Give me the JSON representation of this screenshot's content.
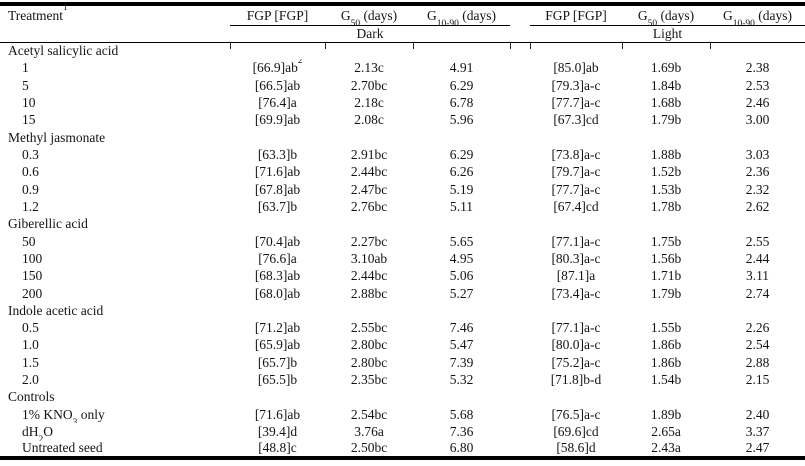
{
  "table": {
    "headers": {
      "treatment": "Treatment",
      "treatment_sup": "1",
      "fgp": "FGP [FGP]",
      "g50_main": "G",
      "g50_sub": "50",
      "g1090_main": "G",
      "g1090_sub": "10-90",
      "days_unit": " (days)",
      "dark": "Dark",
      "light": "Light"
    },
    "sections": [
      {
        "group": "Acetyl salicylic acid",
        "rows": [
          {
            "treatment": "1",
            "dark_fgp": "[66.9]ab",
            "dark_fgp_sup": "2",
            "dark_g50": "2.13c",
            "dark_g1090": "4.91",
            "light_fgp": "[85.0]ab",
            "light_g50": "1.69b",
            "light_g1090": "2.38"
          },
          {
            "treatment": "5",
            "dark_fgp": "[66.5]ab",
            "dark_g50": "2.70bc",
            "dark_g1090": "6.29",
            "light_fgp": "[79.3]a-c",
            "light_g50": "1.84b",
            "light_g1090": "2.53"
          },
          {
            "treatment": "10",
            "dark_fgp": "[76.4]a",
            "dark_g50": "2.18c",
            "dark_g1090": "6.78",
            "light_fgp": "[77.7]a-c",
            "light_g50": "1.68b",
            "light_g1090": "2.46"
          },
          {
            "treatment": "15",
            "dark_fgp": "[69.9]ab",
            "dark_g50": "2.08c",
            "dark_g1090": "5.96",
            "light_fgp": "[67.3]cd",
            "light_g50": "1.79b",
            "light_g1090": "3.00"
          }
        ]
      },
      {
        "group": "Methyl jasmonate",
        "rows": [
          {
            "treatment": "0.3",
            "dark_fgp": "[63.3]b",
            "dark_g50": "2.91bc",
            "dark_g1090": "6.29",
            "light_fgp": "[73.8]a-c",
            "light_g50": "1.88b",
            "light_g1090": "3.03"
          },
          {
            "treatment": "0.6",
            "dark_fgp": "[71.6]ab",
            "dark_g50": "2.44bc",
            "dark_g1090": "6.26",
            "light_fgp": "[79.7]a-c",
            "light_g50": "1.52b",
            "light_g1090": "2.36"
          },
          {
            "treatment": "0.9",
            "dark_fgp": "[67.8]ab",
            "dark_g50": "2.47bc",
            "dark_g1090": "5.19",
            "light_fgp": "[77.7]a-c",
            "light_g50": "1.53b",
            "light_g1090": "2.32"
          },
          {
            "treatment": "1.2",
            "dark_fgp": "[63.7]b",
            "dark_g50": "2.76bc",
            "dark_g1090": "5.11",
            "light_fgp": "[67.4]cd",
            "light_g50": "1.78b",
            "light_g1090": "2.62"
          }
        ]
      },
      {
        "group": "Giberellic acid",
        "rows": [
          {
            "treatment": "50",
            "dark_fgp": "[70.4]ab",
            "dark_g50": "2.27bc",
            "dark_g1090": "5.65",
            "light_fgp": "[77.1]a-c",
            "light_g50": "1.75b",
            "light_g1090": "2.55"
          },
          {
            "treatment": "100",
            "dark_fgp": "[76.6]a",
            "dark_g50": "3.10ab",
            "dark_g1090": "4.95",
            "light_fgp": "[80.3]a-c",
            "light_g50": "1.56b",
            "light_g1090": "2.44"
          },
          {
            "treatment": "150",
            "dark_fgp": "[68.3]ab",
            "dark_g50": "2.44bc",
            "dark_g1090": "5.06",
            "light_fgp": "[87.1]a",
            "light_g50": "1.71b",
            "light_g1090": "3.11"
          },
          {
            "treatment": "200",
            "dark_fgp": "[68.0]ab",
            "dark_g50": "2.88bc",
            "dark_g1090": "5.27",
            "light_fgp": "[73.4]a-c",
            "light_g50": "1.79b",
            "light_g1090": "2.74"
          }
        ]
      },
      {
        "group": "Indole acetic acid",
        "rows": [
          {
            "treatment": "0.5",
            "dark_fgp": "[71.2]ab",
            "dark_g50": "2.55bc",
            "dark_g1090": "7.46",
            "light_fgp": "[77.1]a-c",
            "light_g50": "1.55b",
            "light_g1090": "2.26"
          },
          {
            "treatment": "1.0",
            "dark_fgp": "[65.9]ab",
            "dark_g50": "2.80bc",
            "dark_g1090": "5.47",
            "light_fgp": "[80.0]a-c",
            "light_g50": "1.86b",
            "light_g1090": "2.54"
          },
          {
            "treatment": "1.5",
            "dark_fgp": "[65.7]b",
            "dark_g50": "2.80bc",
            "dark_g1090": "7.39",
            "light_fgp": "[75.2]a-c",
            "light_g50": "1.86b",
            "light_g1090": "2.88"
          },
          {
            "treatment": "2.0",
            "dark_fgp": "[65.5]b",
            "dark_g50": "2.35bc",
            "dark_g1090": "5.32",
            "light_fgp": "[71.8]b-d",
            "light_g50": "1.54b",
            "light_g1090": "2.15"
          }
        ]
      },
      {
        "group": "Controls",
        "rows": [
          {
            "treatment": "1% KNO",
            "treatment_sub": "3",
            "treatment_tail": " only",
            "dark_fgp": "[71.6]ab",
            "dark_g50": "2.54bc",
            "dark_g1090": "5.68",
            "light_fgp": "[76.5]a-c",
            "light_g50": "1.89b",
            "light_g1090": "2.40"
          },
          {
            "treatment": "dH",
            "treatment_sub": "2",
            "treatment_tail": "O",
            "dark_fgp": "[39.4]d",
            "dark_g50": "3.76a",
            "dark_g1090": "7.36",
            "light_fgp": "[69.6]cd",
            "light_g50": "2.65a",
            "light_g1090": "3.37"
          },
          {
            "treatment": "Untreated seed",
            "dark_fgp": "[48.8]c",
            "dark_g50": "2.50bc",
            "dark_g1090": "6.80",
            "light_fgp": "[58.6]d",
            "light_g50": "2.43a",
            "light_g1090": "2.47"
          }
        ]
      }
    ]
  },
  "colors": {
    "text": "#141414",
    "rule": "#000000",
    "background": "#ffffff"
  }
}
